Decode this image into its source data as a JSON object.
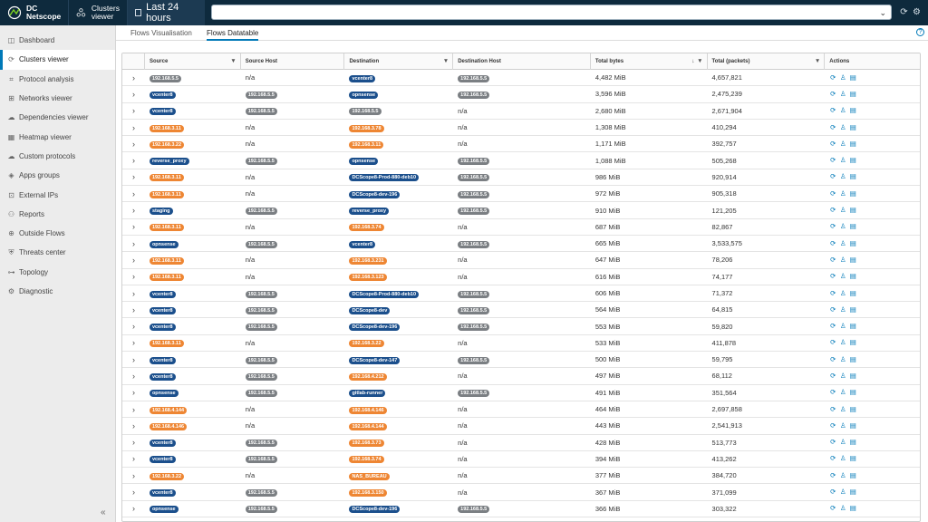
{
  "app": {
    "title_line1": "DC",
    "title_line2": "Netscope",
    "clusters_line1": "Clusters",
    "clusters_line2": "viewer",
    "time_range": "Last 24 hours",
    "search_value": ""
  },
  "colors": {
    "header_bg": "#0e2a3d",
    "accent": "#0079b8",
    "pill_blue": "#1b4f8c",
    "pill_gray": "#7b7f83",
    "pill_orange": "#ee8633"
  },
  "sidebar": {
    "items": [
      {
        "label": "Dashboard",
        "icon": "dashboard-icon",
        "glyph": "◫"
      },
      {
        "label": "Clusters viewer",
        "icon": "clusters-icon",
        "glyph": "⟳",
        "active": true
      },
      {
        "label": "Protocol analysis",
        "icon": "protocol-icon",
        "glyph": "⌗"
      },
      {
        "label": "Networks viewer",
        "icon": "network-icon",
        "glyph": "⊞"
      },
      {
        "label": "Dependencies viewer",
        "icon": "dependencies-icon",
        "glyph": "☁"
      },
      {
        "label": "Heatmap viewer",
        "icon": "heatmap-icon",
        "glyph": "▦"
      },
      {
        "label": "Custom protocols",
        "icon": "custom-protocols-icon",
        "glyph": "☁"
      },
      {
        "label": "Apps groups",
        "icon": "apps-groups-icon",
        "glyph": "◈"
      },
      {
        "label": "External IPs",
        "icon": "external-ips-icon",
        "glyph": "⊡"
      },
      {
        "label": "Reports",
        "icon": "reports-icon",
        "glyph": "⚇"
      },
      {
        "label": "Outside Flows",
        "icon": "outside-flows-icon",
        "glyph": "⊕"
      },
      {
        "label": "Threats center",
        "icon": "threats-icon",
        "glyph": "⛨"
      },
      {
        "label": "Topology",
        "icon": "topology-icon",
        "glyph": "⊶"
      },
      {
        "label": "Diagnostic",
        "icon": "diagnostic-icon",
        "glyph": "⚙"
      }
    ]
  },
  "tabs": [
    {
      "label": "Flows Visualisation",
      "active": false
    },
    {
      "label": "Flows Datatable",
      "active": true
    }
  ],
  "table": {
    "columns": [
      {
        "key": "expand",
        "label": ""
      },
      {
        "key": "source",
        "label": "Source",
        "filter": true
      },
      {
        "key": "source_host",
        "label": "Source Host"
      },
      {
        "key": "destination",
        "label": "Destination",
        "filter": true
      },
      {
        "key": "destination_host",
        "label": "Destination Host"
      },
      {
        "key": "total_bytes",
        "label": "Total bytes",
        "filter": true,
        "sorted": "desc"
      },
      {
        "key": "total_packets",
        "label": "Total (packets)",
        "filter": true
      },
      {
        "key": "actions",
        "label": "Actions"
      }
    ],
    "rows": [
      {
        "source": {
          "t": "192.168.5.5",
          "c": "gray"
        },
        "source_host": {
          "t": "n/a"
        },
        "destination": {
          "t": "vcenter8",
          "c": "blue"
        },
        "destination_host": {
          "t": "192.168.5.5",
          "c": "gray"
        },
        "total_bytes": "4,482 MiB",
        "total_packets": "4,657,821"
      },
      {
        "source": {
          "t": "vcenter8",
          "c": "blue"
        },
        "source_host": {
          "t": "192.168.5.5",
          "c": "gray"
        },
        "destination": {
          "t": "opnsense",
          "c": "blue"
        },
        "destination_host": {
          "t": "192.168.5.5",
          "c": "gray"
        },
        "total_bytes": "3,596 MiB",
        "total_packets": "2,475,239"
      },
      {
        "source": {
          "t": "vcenter8",
          "c": "blue"
        },
        "source_host": {
          "t": "192.168.5.5",
          "c": "gray"
        },
        "destination": {
          "t": "192.168.5.5",
          "c": "gray"
        },
        "destination_host": {
          "t": "n/a"
        },
        "total_bytes": "2,680 MiB",
        "total_packets": "2,671,904"
      },
      {
        "source": {
          "t": "192.168.3.11",
          "c": "orange"
        },
        "source_host": {
          "t": "n/a"
        },
        "destination": {
          "t": "192.168.3.78",
          "c": "orange"
        },
        "destination_host": {
          "t": "n/a"
        },
        "total_bytes": "1,308 MiB",
        "total_packets": "410,294"
      },
      {
        "source": {
          "t": "192.168.3.22",
          "c": "orange"
        },
        "source_host": {
          "t": "n/a"
        },
        "destination": {
          "t": "192.168.3.11",
          "c": "orange"
        },
        "destination_host": {
          "t": "n/a"
        },
        "total_bytes": "1,171 MiB",
        "total_packets": "392,757"
      },
      {
        "source": {
          "t": "reverse_proxy",
          "c": "blue"
        },
        "source_host": {
          "t": "192.168.5.5",
          "c": "gray"
        },
        "destination": {
          "t": "opnsense",
          "c": "blue"
        },
        "destination_host": {
          "t": "192.168.5.5",
          "c": "gray"
        },
        "total_bytes": "1,088 MiB",
        "total_packets": "505,268"
      },
      {
        "source": {
          "t": "192.168.3.11",
          "c": "orange"
        },
        "source_host": {
          "t": "n/a"
        },
        "destination": {
          "t": "DCScope8-Prod-880-deb10",
          "c": "blue"
        },
        "destination_host": {
          "t": "192.168.5.5",
          "c": "gray"
        },
        "total_bytes": "986 MiB",
        "total_packets": "920,914"
      },
      {
        "source": {
          "t": "192.168.3.11",
          "c": "orange"
        },
        "source_host": {
          "t": "n/a"
        },
        "destination": {
          "t": "DCScope8-dev-196",
          "c": "blue"
        },
        "destination_host": {
          "t": "192.168.5.5",
          "c": "gray"
        },
        "total_bytes": "972 MiB",
        "total_packets": "905,318"
      },
      {
        "source": {
          "t": "staging",
          "c": "blue"
        },
        "source_host": {
          "t": "192.168.5.5",
          "c": "gray"
        },
        "destination": {
          "t": "reverse_proxy",
          "c": "blue"
        },
        "destination_host": {
          "t": "192.168.5.5",
          "c": "gray"
        },
        "total_bytes": "910 MiB",
        "total_packets": "121,205"
      },
      {
        "source": {
          "t": "192.168.3.11",
          "c": "orange"
        },
        "source_host": {
          "t": "n/a"
        },
        "destination": {
          "t": "192.168.3.74",
          "c": "orange"
        },
        "destination_host": {
          "t": "n/a"
        },
        "total_bytes": "687 MiB",
        "total_packets": "82,867"
      },
      {
        "source": {
          "t": "opnsense",
          "c": "blue"
        },
        "source_host": {
          "t": "192.168.5.5",
          "c": "gray"
        },
        "destination": {
          "t": "vcenter8",
          "c": "blue"
        },
        "destination_host": {
          "t": "192.168.5.5",
          "c": "gray"
        },
        "total_bytes": "665 MiB",
        "total_packets": "3,533,575"
      },
      {
        "source": {
          "t": "192.168.3.11",
          "c": "orange"
        },
        "source_host": {
          "t": "n/a"
        },
        "destination": {
          "t": "192.168.3.231",
          "c": "orange"
        },
        "destination_host": {
          "t": "n/a"
        },
        "total_bytes": "647 MiB",
        "total_packets": "78,206"
      },
      {
        "source": {
          "t": "192.168.3.11",
          "c": "orange"
        },
        "source_host": {
          "t": "n/a"
        },
        "destination": {
          "t": "192.168.3.123",
          "c": "orange"
        },
        "destination_host": {
          "t": "n/a"
        },
        "total_bytes": "616 MiB",
        "total_packets": "74,177"
      },
      {
        "source": {
          "t": "vcenter8",
          "c": "blue"
        },
        "source_host": {
          "t": "192.168.5.5",
          "c": "gray"
        },
        "destination": {
          "t": "DCScope8-Prod-880-deb10",
          "c": "blue"
        },
        "destination_host": {
          "t": "192.168.5.5",
          "c": "gray"
        },
        "total_bytes": "606 MiB",
        "total_packets": "71,372"
      },
      {
        "source": {
          "t": "vcenter8",
          "c": "blue"
        },
        "source_host": {
          "t": "192.168.5.5",
          "c": "gray"
        },
        "destination": {
          "t": "DCScope8-dev",
          "c": "blue"
        },
        "destination_host": {
          "t": "192.168.5.5",
          "c": "gray"
        },
        "total_bytes": "564 MiB",
        "total_packets": "64,815"
      },
      {
        "source": {
          "t": "vcenter8",
          "c": "blue"
        },
        "source_host": {
          "t": "192.168.5.5",
          "c": "gray"
        },
        "destination": {
          "t": "DCScope8-dev-196",
          "c": "blue"
        },
        "destination_host": {
          "t": "192.168.5.5",
          "c": "gray"
        },
        "total_bytes": "553 MiB",
        "total_packets": "59,820"
      },
      {
        "source": {
          "t": "192.168.3.11",
          "c": "orange"
        },
        "source_host": {
          "t": "n/a"
        },
        "destination": {
          "t": "192.168.3.22",
          "c": "orange"
        },
        "destination_host": {
          "t": "n/a"
        },
        "total_bytes": "533 MiB",
        "total_packets": "411,878"
      },
      {
        "source": {
          "t": "vcenter8",
          "c": "blue"
        },
        "source_host": {
          "t": "192.168.5.5",
          "c": "gray"
        },
        "destination": {
          "t": "DCScope8-dev-147",
          "c": "blue"
        },
        "destination_host": {
          "t": "192.168.5.5",
          "c": "gray"
        },
        "total_bytes": "500 MiB",
        "total_packets": "59,795"
      },
      {
        "source": {
          "t": "vcenter8",
          "c": "blue"
        },
        "source_host": {
          "t": "192.168.5.5",
          "c": "gray"
        },
        "destination": {
          "t": "192.168.4.212",
          "c": "orange"
        },
        "destination_host": {
          "t": "n/a"
        },
        "total_bytes": "497 MiB",
        "total_packets": "68,112"
      },
      {
        "source": {
          "t": "opnsense",
          "c": "blue"
        },
        "source_host": {
          "t": "192.168.5.5",
          "c": "gray"
        },
        "destination": {
          "t": "gitlab-runner",
          "c": "blue"
        },
        "destination_host": {
          "t": "192.168.5.5",
          "c": "gray"
        },
        "total_bytes": "491 MiB",
        "total_packets": "351,564"
      },
      {
        "source": {
          "t": "192.168.4.144",
          "c": "orange"
        },
        "source_host": {
          "t": "n/a"
        },
        "destination": {
          "t": "192.168.4.146",
          "c": "orange"
        },
        "destination_host": {
          "t": "n/a"
        },
        "total_bytes": "464 MiB",
        "total_packets": "2,697,858"
      },
      {
        "source": {
          "t": "192.168.4.146",
          "c": "orange"
        },
        "source_host": {
          "t": "n/a"
        },
        "destination": {
          "t": "192.168.4.144",
          "c": "orange"
        },
        "destination_host": {
          "t": "n/a"
        },
        "total_bytes": "443 MiB",
        "total_packets": "2,541,913"
      },
      {
        "source": {
          "t": "vcenter8",
          "c": "blue"
        },
        "source_host": {
          "t": "192.168.5.5",
          "c": "gray"
        },
        "destination": {
          "t": "192.168.3.73",
          "c": "orange"
        },
        "destination_host": {
          "t": "n/a"
        },
        "total_bytes": "428 MiB",
        "total_packets": "513,773"
      },
      {
        "source": {
          "t": "vcenter8",
          "c": "blue"
        },
        "source_host": {
          "t": "192.168.5.5",
          "c": "gray"
        },
        "destination": {
          "t": "192.168.3.74",
          "c": "orange"
        },
        "destination_host": {
          "t": "n/a"
        },
        "total_bytes": "394 MiB",
        "total_packets": "413,262"
      },
      {
        "source": {
          "t": "192.168.3.22",
          "c": "orange"
        },
        "source_host": {
          "t": "n/a"
        },
        "destination": {
          "t": "NAS_BUREAU",
          "c": "orange"
        },
        "destination_host": {
          "t": "n/a"
        },
        "total_bytes": "377 MiB",
        "total_packets": "384,720"
      },
      {
        "source": {
          "t": "vcenter8",
          "c": "blue"
        },
        "source_host": {
          "t": "192.168.5.5",
          "c": "gray"
        },
        "destination": {
          "t": "192.168.3.150",
          "c": "orange"
        },
        "destination_host": {
          "t": "n/a"
        },
        "total_bytes": "367 MiB",
        "total_packets": "371,099"
      },
      {
        "source": {
          "t": "opnsense",
          "c": "blue"
        },
        "source_host": {
          "t": "192.168.5.5",
          "c": "gray"
        },
        "destination": {
          "t": "DCScope8-dev-196",
          "c": "blue"
        },
        "destination_host": {
          "t": "192.168.5.5",
          "c": "gray"
        },
        "total_bytes": "366 MiB",
        "total_packets": "303,322"
      }
    ]
  }
}
